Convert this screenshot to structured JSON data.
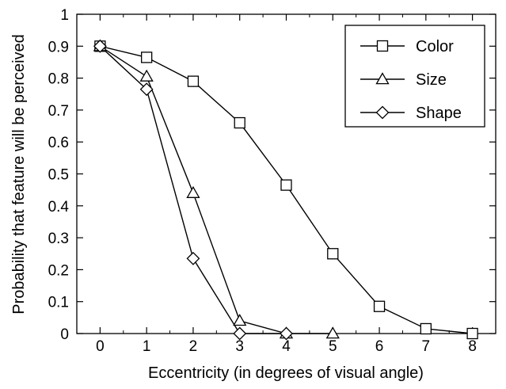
{
  "chart_data": {
    "type": "line",
    "title": "",
    "xlabel": "Eccentricity (in degrees of visual angle)",
    "ylabel": "Probability that feature will be perceived",
    "xlim": [
      -0.5,
      8.5
    ],
    "ylim": [
      0,
      1
    ],
    "x_ticks": [
      0,
      1,
      2,
      3,
      4,
      5,
      6,
      7,
      8
    ],
    "y_ticks": [
      0,
      0.1,
      0.2,
      0.3,
      0.4,
      0.5,
      0.6,
      0.7,
      0.8,
      0.9,
      1
    ],
    "x_tick_labels": [
      "0",
      "1",
      "2",
      "3",
      "4",
      "5",
      "6",
      "7",
      "8"
    ],
    "y_tick_labels": [
      "0",
      "0.1",
      "0.2",
      "0.3",
      "0.4",
      "0.5",
      "0.6",
      "0.7",
      "0.8",
      "0.9",
      "1"
    ],
    "grid": false,
    "legend_position": "top-right",
    "series": [
      {
        "name": "Color",
        "marker": "square",
        "color": "#000000",
        "x": [
          0,
          1,
          2,
          3,
          4,
          5,
          6,
          7,
          8
        ],
        "y": [
          0.9,
          0.865,
          0.79,
          0.66,
          0.465,
          0.25,
          0.085,
          0.015,
          0.0
        ]
      },
      {
        "name": "Size",
        "marker": "triangle",
        "color": "#000000",
        "x": [
          0,
          1,
          2,
          3,
          4,
          5
        ],
        "y": [
          0.9,
          0.805,
          0.44,
          0.04,
          0.0,
          0.0
        ]
      },
      {
        "name": "Shape",
        "marker": "diamond",
        "color": "#000000",
        "x": [
          0,
          1,
          2,
          3,
          4
        ],
        "y": [
          0.9,
          0.765,
          0.235,
          0.0,
          0.0
        ]
      }
    ]
  }
}
